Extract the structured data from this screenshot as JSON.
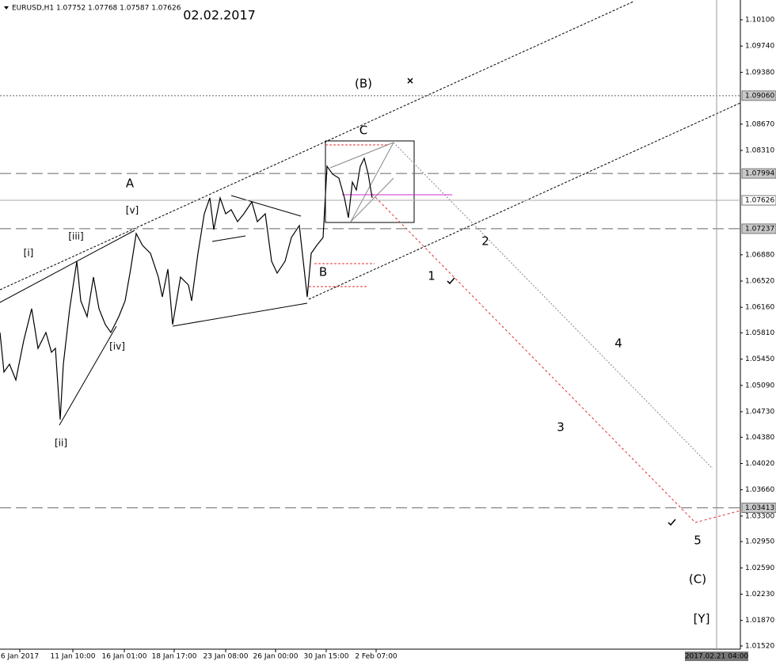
{
  "chart_data": {
    "type": "line",
    "title": "EURUSD,H1  1.07752 1.07768 1.07587 1.07626",
    "x": [
      0,
      5,
      12,
      20,
      30,
      40,
      48,
      58,
      65,
      70,
      76,
      80,
      88,
      97,
      102,
      110,
      118,
      125,
      133,
      140,
      150,
      158,
      165,
      172,
      180,
      190,
      200,
      205,
      212,
      218,
      228,
      238,
      242,
      250,
      258,
      265,
      270,
      278,
      285,
      292,
      300,
      308,
      318,
      325,
      335,
      343,
      350,
      360,
      368,
      378,
      383,
      388,
      393,
      400,
      408,
      413,
      420,
      428,
      435,
      440,
      445,
      450,
      455,
      460,
      465,
      470
    ],
    "series": [
      {
        "name": "EURUSD,H1",
        "color": "#000000",
        "values": [
          1.05815,
          1.05273,
          1.05381,
          1.05164,
          1.05707,
          1.06141,
          1.05598,
          1.05815,
          1.05544,
          1.05598,
          1.04622,
          1.05381,
          1.06141,
          1.06791,
          1.06249,
          1.06032,
          1.06574,
          1.06141,
          1.05924,
          1.05815,
          1.06032,
          1.06249,
          1.06683,
          1.07171,
          1.07008,
          1.069,
          1.06574,
          1.06303,
          1.06683,
          1.05924,
          1.06574,
          1.06466,
          1.06249,
          1.069,
          1.07442,
          1.07659,
          1.07225,
          1.07659,
          1.07442,
          1.07497,
          1.07334,
          1.07442,
          1.07605,
          1.07334,
          1.07442,
          1.06791,
          1.06629,
          1.06791,
          1.07117,
          1.0728,
          1.06791,
          1.06303,
          1.069,
          1.07008,
          1.07117,
          1.08093,
          1.07985,
          1.0793,
          1.07659,
          1.07388,
          1.07876,
          1.07768,
          1.08093,
          1.08202,
          1.07985,
          1.07659
        ]
      }
    ],
    "xlim": [
      0,
      935
    ],
    "xticks": [
      {
        "value": 25,
        "label": "6 Jan 2017"
      },
      {
        "value": 92,
        "label": "11 Jan 10:00"
      },
      {
        "value": 157,
        "label": "16 Jan 01:00"
      },
      {
        "value": 220,
        "label": "18 Jan 17:00"
      },
      {
        "value": 285,
        "label": "23 Jan 08:00"
      },
      {
        "value": 348,
        "label": "26 Jan 00:00"
      },
      {
        "value": 412,
        "label": "30 Jan 15:00"
      },
      {
        "value": 475,
        "label": "2 Feb 07:00"
      }
    ],
    "time_marker": {
      "value": 905,
      "label": "2017.02.21 04:00"
    },
    "ylim": [
      1.01476,
      1.10371
    ],
    "yticks": [
      {
        "value": 1.101,
        "label": "1.10100"
      },
      {
        "value": 1.0974,
        "label": "1.09740"
      },
      {
        "value": 1.0938,
        "label": "1.09380"
      },
      {
        "value": 1.0867,
        "label": "1.08670"
      },
      {
        "value": 1.0831,
        "label": "1.08310"
      },
      {
        "value": 1.0688,
        "label": "1.06880"
      },
      {
        "value": 1.0652,
        "label": "1.06520"
      },
      {
        "value": 1.0616,
        "label": "1.06160"
      },
      {
        "value": 1.0581,
        "label": "1.05810"
      },
      {
        "value": 1.0545,
        "label": "1.05450"
      },
      {
        "value": 1.0509,
        "label": "1.05090"
      },
      {
        "value": 1.0473,
        "label": "1.04730"
      },
      {
        "value": 1.0438,
        "label": "1.04380"
      },
      {
        "value": 1.0402,
        "label": "1.04020"
      },
      {
        "value": 1.0366,
        "label": "1.03660"
      },
      {
        "value": 1.033,
        "label": "1.03300"
      },
      {
        "value": 1.0295,
        "label": "1.02950"
      },
      {
        "value": 1.0259,
        "label": "1.02590"
      },
      {
        "value": 1.0223,
        "label": "1.02230"
      },
      {
        "value": 1.0187,
        "label": "1.01870"
      },
      {
        "value": 1.0152,
        "label": "1.01520"
      }
    ],
    "levels": [
      {
        "value": 1.0906,
        "label": "1.09060",
        "style": "dotted"
      },
      {
        "value": 1.07994,
        "label": "1.07994",
        "style": "dashed"
      },
      {
        "value": 1.07626,
        "label": "1.07626",
        "style": "solid"
      },
      {
        "value": 1.07237,
        "label": "1.07237",
        "style": "dashed"
      },
      {
        "value": 1.03413,
        "label": "1.03413",
        "style": "dashed"
      }
    ],
    "annotations": [
      {
        "text": "02.02.2017",
        "color": "#3aa845"
      },
      {
        "text": "(B)",
        "color": "#2e8b2e"
      },
      {
        "text": "C",
        "color": "#1a1adb"
      },
      {
        "text": "A",
        "color": "#1a1adb"
      },
      {
        "text": "[v]",
        "color": "#cc1111"
      },
      {
        "text": "[iii]",
        "color": "#cc1111"
      },
      {
        "text": "[i]",
        "color": "#cc1111"
      },
      {
        "text": "[iv]",
        "color": "#cc1111"
      },
      {
        "text": "[ii]",
        "color": "#cc1111"
      },
      {
        "text": "B",
        "color": "#1a1adb"
      },
      {
        "text": "1",
        "color": "#1a1adb"
      },
      {
        "text": "2",
        "color": "#1a1adb"
      },
      {
        "text": "3",
        "color": "#1a1adb"
      },
      {
        "text": "4",
        "color": "#1a1adb"
      },
      {
        "text": "5",
        "color": "#1a1adb"
      },
      {
        "text": "(C)",
        "color": "#2e8b2e"
      },
      {
        "text": "[Y]",
        "color": "#cc1111"
      }
    ]
  }
}
